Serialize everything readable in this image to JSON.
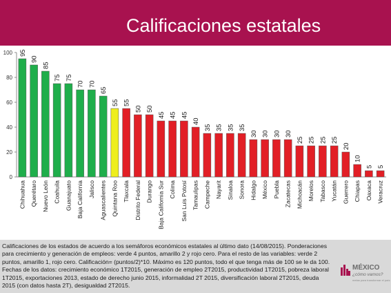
{
  "header": {
    "title": "Calificaciones estatales"
  },
  "colors": {
    "header_bg": "#a8124f",
    "green": "#1fae4b",
    "yellow": "#eeee1c",
    "red": "#e21f26"
  },
  "chart_data": {
    "type": "bar",
    "ylim": [
      0,
      100
    ],
    "yticks": [
      0,
      20,
      40,
      60,
      80,
      100
    ],
    "grid": false,
    "categories": [
      "Chihuahua",
      "Querétaro",
      "Nuevo León",
      "Coahuila",
      "Guanajuato",
      "Baja California",
      "Jalisco",
      "Aguascalientes",
      "Quintana Roo",
      "Tlaxcala",
      "Distrito Federal",
      "Durango",
      "Baja California Sur",
      "Colima",
      "San Luis Potosí",
      "Tamaulipas",
      "Campeche",
      "Nayarit",
      "Sinaloa",
      "Sonora",
      "Hidalgo",
      "México",
      "Puebla",
      "Zacatecas",
      "Michoacán",
      "Morelos",
      "Tabasco",
      "Yucatán",
      "Guerrero",
      "Chiapas",
      "Oaxaca",
      "Veracruz"
    ],
    "values": [
      95,
      90,
      85,
      75,
      75,
      70,
      70,
      65,
      55,
      55,
      50,
      50,
      45,
      45,
      45,
      40,
      35,
      35,
      35,
      35,
      30,
      30,
      30,
      30,
      25,
      25,
      25,
      25,
      20,
      10,
      5,
      5
    ],
    "bar_colors": [
      "green",
      "green",
      "green",
      "green",
      "green",
      "green",
      "green",
      "green",
      "yellow",
      "red",
      "red",
      "red",
      "red",
      "red",
      "red",
      "red",
      "red",
      "red",
      "red",
      "red",
      "red",
      "red",
      "red",
      "red",
      "red",
      "red",
      "red",
      "red",
      "red",
      "red",
      "red",
      "red"
    ]
  },
  "footer": {
    "text": "Calificaciones de los estados de acuerdo a los semáforos económicos estatales al último dato (14/08/2015). Ponderaciones para crecimiento y generación de empleos: verde 4 puntos, amarillo 2 y rojo cero. Para el resto de las variables: verde 2 puntos, amarillo 1, rojo cero. Calificación= (puntos/2)*10. Máximo es 120 puntos, todo el que tenga más de 100 se le da 100. Fechas de los datos: crecimiento económico 1T2015, generación de empleo 2T2015, productividad 1T2015, pobreza laboral 1T2015, exportaciones 2013, estado de derecho junio 2015, informalidad 2T 2015, diversificación laboral 2T2015, deuda 2015 (con datos hasta 2T), desigualdad 2T2015."
  },
  "logo": {
    "name": "MÉXICO",
    "tagline": "¿cómo vamos?",
    "sub": "metas para transformar el país"
  }
}
